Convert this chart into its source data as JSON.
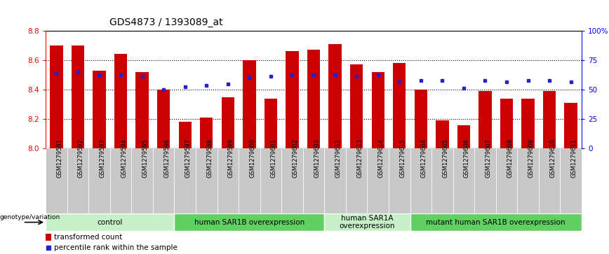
{
  "title": "GDS4873 / 1393089_at",
  "samples": [
    "GSM1279591",
    "GSM1279592",
    "GSM1279593",
    "GSM1279594",
    "GSM1279595",
    "GSM1279596",
    "GSM1279597",
    "GSM1279598",
    "GSM1279599",
    "GSM1279600",
    "GSM1279601",
    "GSM1279602",
    "GSM1279603",
    "GSM1279612",
    "GSM1279613",
    "GSM1279614",
    "GSM1279615",
    "GSM1279604",
    "GSM1279605",
    "GSM1279606",
    "GSM1279607",
    "GSM1279608",
    "GSM1279609",
    "GSM1279610",
    "GSM1279611"
  ],
  "transformed_count": [
    8.7,
    8.7,
    8.53,
    8.64,
    8.52,
    8.4,
    8.18,
    8.21,
    8.35,
    8.6,
    8.34,
    8.66,
    8.67,
    8.71,
    8.57,
    8.52,
    8.58,
    8.4,
    8.19,
    8.16,
    8.39,
    8.34,
    8.34,
    8.39,
    8.31
  ],
  "percentile_rank": [
    8.51,
    8.52,
    8.5,
    8.5,
    8.49,
    8.4,
    8.42,
    8.43,
    8.44,
    8.48,
    8.49,
    8.5,
    8.5,
    8.5,
    8.49,
    8.5,
    8.45,
    8.46,
    8.46,
    8.41,
    8.46,
    8.45,
    8.46,
    8.46,
    8.45
  ],
  "groups": [
    {
      "label": "control",
      "start": 0,
      "end": 5,
      "color": "#c8f0c8"
    },
    {
      "label": "human SAR1B overexpression",
      "start": 6,
      "end": 12,
      "color": "#60d060"
    },
    {
      "label": "human SAR1A\noverexpression",
      "start": 13,
      "end": 16,
      "color": "#c8f0c8"
    },
    {
      "label": "mutant human SAR1B overexpression",
      "start": 17,
      "end": 24,
      "color": "#60d060"
    }
  ],
  "ylim": [
    8.0,
    8.8
  ],
  "y_left_ticks": [
    8.0,
    8.2,
    8.4,
    8.6,
    8.8
  ],
  "y_right_ticks": [
    0,
    25,
    50,
    75,
    100
  ],
  "y_right_labels": [
    "0",
    "25",
    "50",
    "75",
    "100%"
  ],
  "bar_color": "#cc0000",
  "dot_color": "#2222cc",
  "bar_width": 0.6,
  "baseline": 8.0,
  "grid_lines": [
    8.2,
    8.4,
    8.6,
    8.8
  ],
  "bg_color": "#f0f0f0"
}
